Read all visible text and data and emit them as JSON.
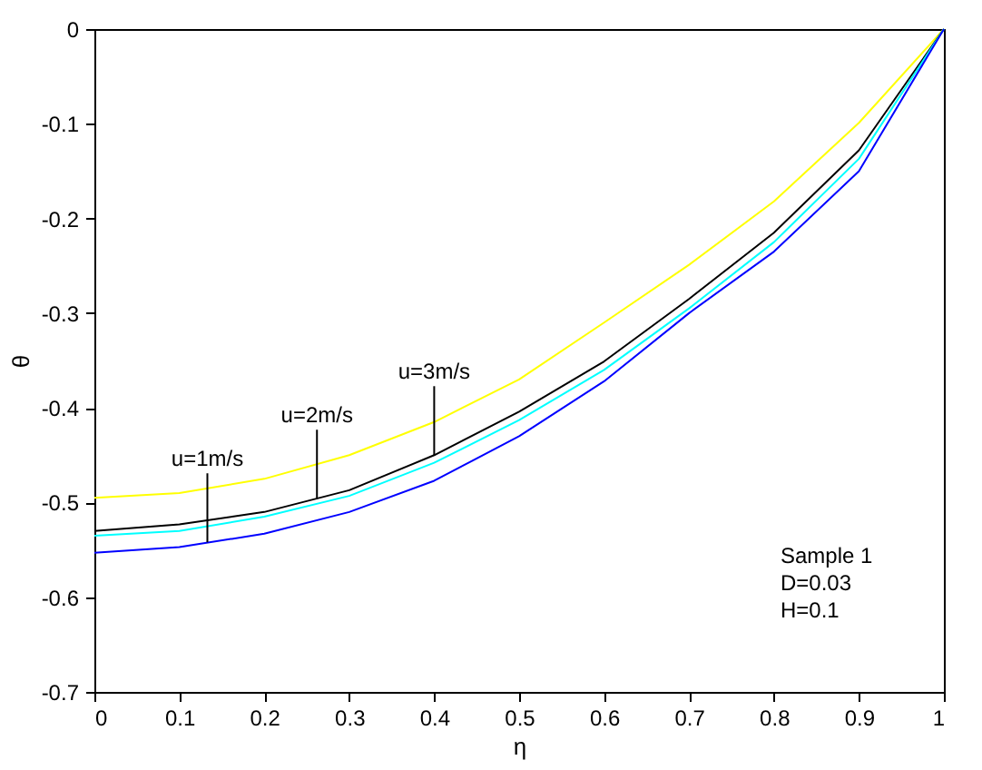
{
  "chart_data": {
    "type": "line",
    "xlabel": "η",
    "ylabel": "θ",
    "x": [
      0,
      0.1,
      0.2,
      0.3,
      0.4,
      0.5,
      0.6,
      0.7,
      0.8,
      0.9,
      1
    ],
    "series": [
      {
        "color": "#ffff00",
        "values": [
          -0.495,
          -0.49,
          -0.475,
          -0.45,
          -0.415,
          -0.37,
          -0.31,
          -0.249,
          -0.182,
          -0.099,
          0
        ]
      },
      {
        "color": "#000000",
        "values": [
          -0.53,
          -0.523,
          -0.51,
          -0.487,
          -0.45,
          -0.404,
          -0.351,
          -0.285,
          -0.215,
          -0.128,
          0
        ]
      },
      {
        "color": "#00ffff",
        "values": [
          -0.535,
          -0.53,
          -0.515,
          -0.493,
          -0.458,
          -0.413,
          -0.36,
          -0.295,
          -0.225,
          -0.137,
          0
        ]
      },
      {
        "color": "#0000ff",
        "values": [
          -0.553,
          -0.547,
          -0.533,
          -0.51,
          -0.477,
          -0.43,
          -0.372,
          -0.3,
          -0.235,
          -0.15,
          0
        ]
      }
    ],
    "xlim": [
      0,
      1
    ],
    "xticks": [
      0,
      0.1,
      0.2,
      0.3,
      0.4,
      0.5,
      0.6,
      0.7,
      0.8,
      0.9,
      1
    ],
    "ylim": [
      -0.7,
      0
    ],
    "yticks": [
      -0.7,
      -0.6,
      -0.5,
      -0.4,
      -0.3,
      -0.2,
      -0.1,
      0
    ],
    "grid": false,
    "marker": "none",
    "line_style": "solid",
    "annotations": [
      {
        "text": "u=1m/s",
        "x": 0.133,
        "y": -0.542
      },
      {
        "text": "u=2m/s",
        "x": 0.262,
        "y": -0.496
      },
      {
        "text": "u=3m/s",
        "x": 0.4,
        "y": -0.45
      },
      "Sample 1",
      "D=0.03",
      "H=0.1"
    ]
  }
}
